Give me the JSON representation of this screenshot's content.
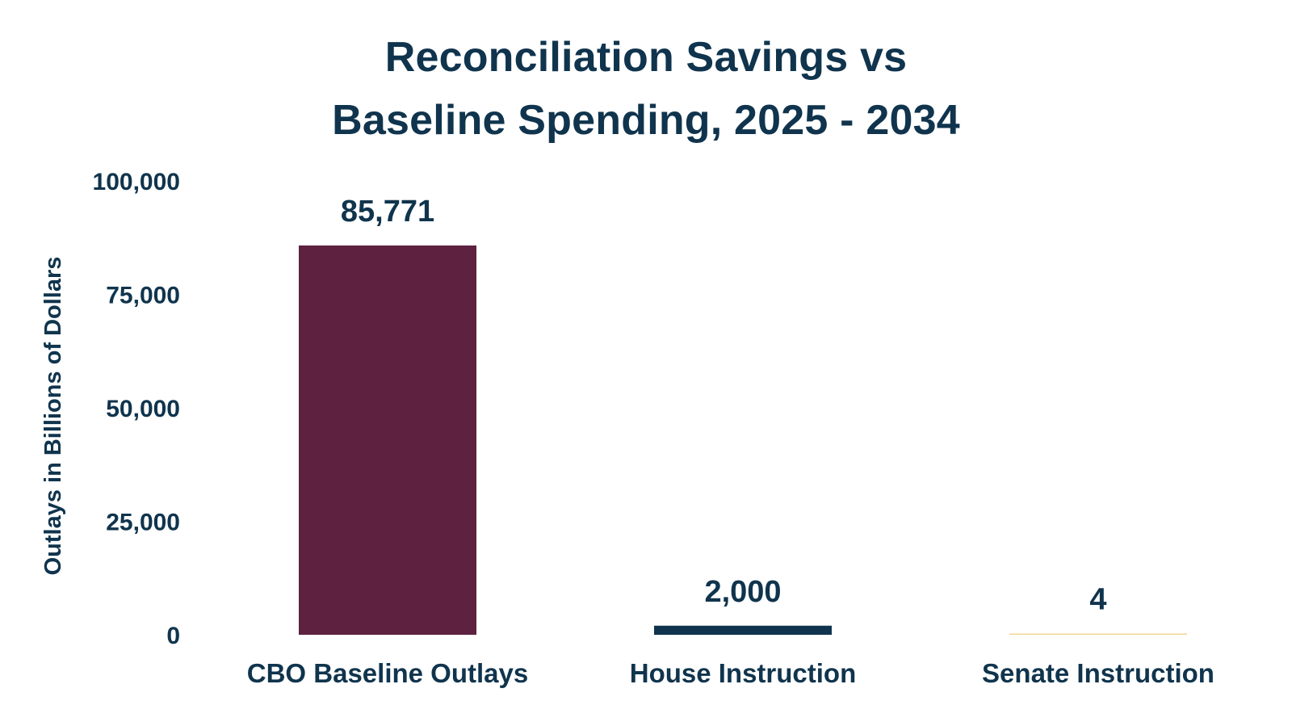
{
  "title_lines": [
    "Reconciliation Savings vs",
    "Baseline Spending, 2025 - 2034"
  ],
  "chart_data": {
    "type": "bar",
    "title": "Reconciliation Savings vs Baseline Spending, 2025 - 2034",
    "xlabel": "",
    "ylabel": "Outlays in Billions of Dollars",
    "categories": [
      "CBO Baseline Outlays",
      "House Instruction",
      "Senate Instruction"
    ],
    "values": [
      85771,
      2000,
      4
    ],
    "value_labels": [
      "85,771",
      "2,000",
      "4"
    ],
    "ylim": [
      0,
      100000
    ],
    "yticks": [
      0,
      25000,
      50000,
      75000,
      100000
    ],
    "ytick_labels": [
      "0",
      "25,000",
      "50,000",
      "75,000",
      "100,000"
    ],
    "bar_colors": [
      "#5e2140",
      "#10344d",
      "#f2d692"
    ],
    "text_color": "#10344d",
    "grid": false,
    "legend": "none"
  }
}
